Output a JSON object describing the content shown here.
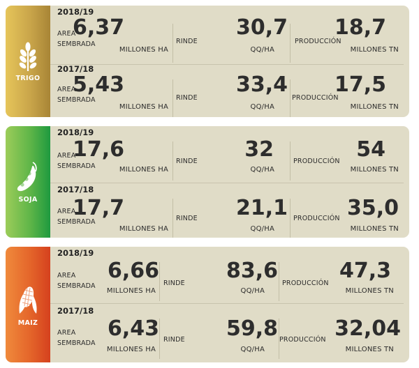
{
  "crops": [
    {
      "name": "TRIGO",
      "icon": "wheat-icon",
      "rows": [
        {
          "year": "2018/19",
          "area_label_1": "AREA",
          "area_label_2": "SEMBRADA",
          "area_value": "6,37",
          "area_unit": "MILLONES HA",
          "rinde_label": "RINDE",
          "rinde_value": "30,7",
          "rinde_unit": "QQ/HA",
          "prod_label": "PRODUCCIÓN",
          "prod_value": "18,7",
          "prod_unit": "MILLONES TN"
        },
        {
          "year": "2017/18",
          "area_label_1": "AREA",
          "area_label_2": "SEMBRADA",
          "area_value": "5,43",
          "area_unit": "MILLONES HA",
          "rinde_label": "RINDE",
          "rinde_value": "33,4",
          "rinde_unit": "QQ/HA",
          "prod_label": "PRODUCCIÓN",
          "prod_value": "17,5",
          "prod_unit": "MILLONES TN"
        }
      ]
    },
    {
      "name": "SOJA",
      "icon": "soybean-pod-icon",
      "rows": [
        {
          "year": "2018/19",
          "area_label_1": "AREA",
          "area_label_2": "SEMBRADA",
          "area_value": "17,6",
          "area_unit": "MILLONES HA",
          "rinde_label": "RINDE",
          "rinde_value": "32",
          "rinde_unit": "QQ/HA",
          "prod_label": "PRODUCCIÓN",
          "prod_value": "54",
          "prod_unit": "MILLONES TN"
        },
        {
          "year": "2017/18",
          "area_label_1": "AREA",
          "area_label_2": "SEMBRADA",
          "area_value": "17,7",
          "area_unit": "MILLONES HA",
          "rinde_label": "RINDE",
          "rinde_value": "21,1",
          "rinde_unit": "QQ/HA",
          "prod_label": "PRODUCCIÓN",
          "prod_value": "35,0",
          "prod_unit": "MILLONES TN"
        }
      ]
    },
    {
      "name": "MAIZ",
      "icon": "corn-icon",
      "rows": [
        {
          "year": "2018/19",
          "area_label_1": "AREA",
          "area_label_2": "SEMBRADA",
          "area_value": "6,66",
          "area_unit": "MILLONES HA",
          "rinde_label": "RINDE",
          "rinde_value": "83,6",
          "rinde_unit": "QQ/HA",
          "prod_label": "PRODUCCIÓN",
          "prod_value": "47,3",
          "prod_unit": "MILLONES TN"
        },
        {
          "year": "2017/18",
          "area_label_1": "AREA",
          "area_label_2": "SEMBRADA",
          "area_value": "6,43",
          "area_unit": "MILLONES HA",
          "rinde_label": "RINDE",
          "rinde_value": "59,8",
          "rinde_unit": "QQ/HA",
          "prod_label": "PRODUCCIÓN",
          "prod_value": "32,04",
          "prod_unit": "MILLONES TN"
        }
      ]
    }
  ]
}
